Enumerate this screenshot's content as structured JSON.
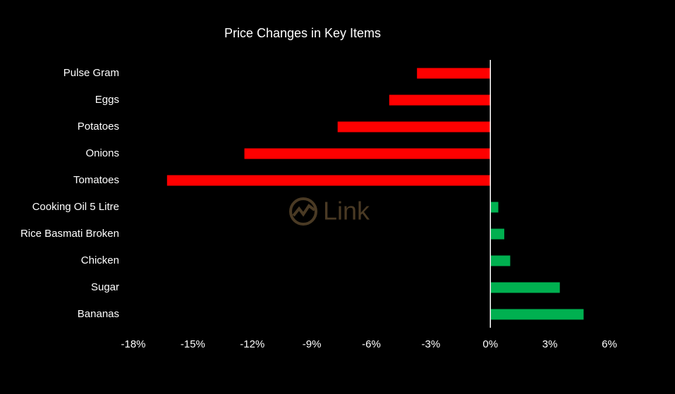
{
  "chart_data": {
    "type": "bar",
    "orientation": "horizontal",
    "title": "Price Changes in Key Items",
    "watermark": "Link",
    "categories": [
      "Pulse Gram",
      "Eggs",
      "Potatoes",
      "Onions",
      "Tomatoes",
      "Cooking Oil 5 Litre",
      "Rice Basmati Broken",
      "Chicken",
      "Sugar",
      "Bananas"
    ],
    "values": [
      -3.7,
      -5.1,
      -7.7,
      -12.4,
      -16.3,
      0.4,
      0.7,
      1.0,
      3.5,
      4.7
    ],
    "negative_color": "#ff0000",
    "positive_color": "#00b050",
    "xlim": [
      -18,
      6
    ],
    "xticks": [
      {
        "value": -18,
        "label": "-18%"
      },
      {
        "value": -15,
        "label": "-15%"
      },
      {
        "value": -12,
        "label": "-12%"
      },
      {
        "value": -9,
        "label": "-9%"
      },
      {
        "value": -6,
        "label": "-6%"
      },
      {
        "value": -3,
        "label": "-3%"
      },
      {
        "value": 0,
        "label": "0%"
      },
      {
        "value": 3,
        "label": "3%"
      },
      {
        "value": 6,
        "label": "6%"
      }
    ],
    "grid": false
  }
}
